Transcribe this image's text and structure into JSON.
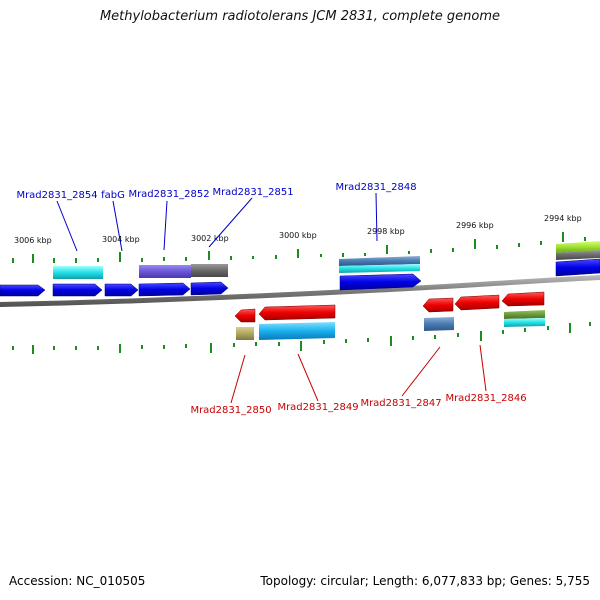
{
  "title": "Methylobacterium radiotolerans JCM 2831, complete genome",
  "footer": {
    "accession": "Accession: NC_010505",
    "summary": "Topology: circular; Length: 6,077,833 bp; Genes: 5,755"
  },
  "colors": {
    "backbone": "#808080",
    "tick": "#1e8c1e",
    "forward_label": "#0000c8",
    "reverse_label": "#c80000",
    "forward_gene": "#0000ee",
    "reverse_gene": "#ee0000"
  },
  "scale_labels": [
    "3006 kbp",
    "3004 kbp",
    "3002 kbp",
    "3000 kbp",
    "2998 kbp",
    "2996 kbp",
    "2994 kbp"
  ],
  "forward_genes": [
    "Mrad2831_2854",
    "fabG",
    "Mrad2831_2852",
    "Mrad2831_2851",
    "Mrad2831_2848"
  ],
  "reverse_genes": [
    "Mrad2831_2850",
    "Mrad2831_2849",
    "Mrad2831_2847",
    "Mrad2831_2846"
  ]
}
